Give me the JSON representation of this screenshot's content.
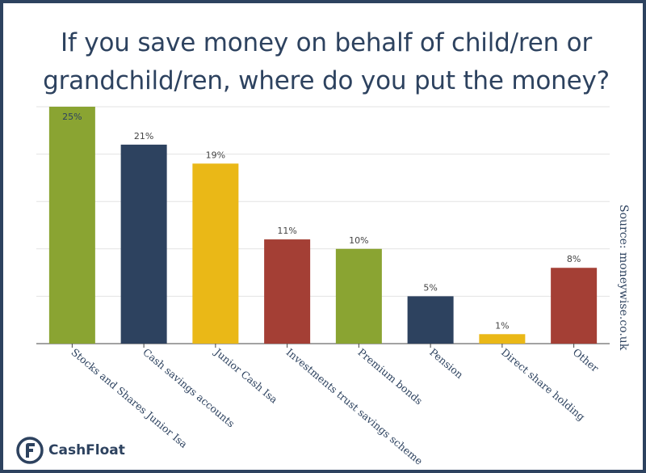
{
  "title_line1": "If you save money on behalf of child/ren or",
  "title_line2": "grandchild/ren, where do you put the money?",
  "source": "Source: moneywise.co.uk",
  "brand": "CashFloat",
  "colors": {
    "green": "#8aa432",
    "navy": "#2d425f",
    "yellow": "#eab817",
    "red": "#a43f35",
    "frame": "#2d425f",
    "text": "#2d425f"
  },
  "chart_data": {
    "type": "bar",
    "title": "If you save money on behalf of child/ren or grandchild/ren, where do you put the money?",
    "categories": [
      "Stocks and Shares Junior Isa",
      "Cash savings accounts",
      "Junior Cash Isa",
      "Investments trust savings scheme",
      "Premium bonds",
      "Pension",
      "Direct share holding",
      "Other"
    ],
    "values": [
      25,
      21,
      19,
      11,
      10,
      5,
      1,
      8
    ],
    "value_labels": [
      "25%",
      "21%",
      "19%",
      "11%",
      "10%",
      "5%",
      "1%",
      "8%"
    ],
    "bar_colors": [
      "#8aa432",
      "#2d425f",
      "#eab817",
      "#a43f35",
      "#8aa432",
      "#2d425f",
      "#eab817",
      "#a43f35"
    ],
    "ylim": [
      0,
      25
    ],
    "gridlines": [
      5,
      10,
      15,
      20,
      25
    ],
    "grid": true,
    "xlabel": "",
    "ylabel": ""
  }
}
